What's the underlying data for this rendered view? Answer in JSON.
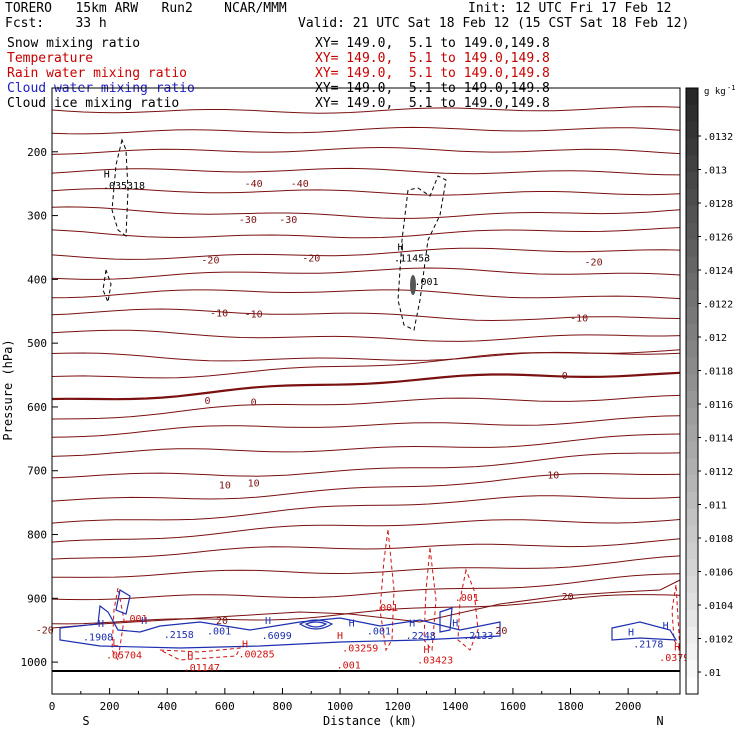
{
  "header": {
    "model": "TORERO   15km ARW   Run2    NCAR/MMM",
    "init": "Init: 12 UTC Fri 17 Feb 12",
    "fcst": "Fcst:    33 h",
    "valid": "Valid: 21 UTC Sat 18 Feb 12 (15 CST Sat 18 Feb 12)"
  },
  "fields": [
    {
      "name": "Snow mixing ratio",
      "xy": "XY= 149.0,  5.1 to 149.0,149.8",
      "color": "#000000"
    },
    {
      "name": "Temperature",
      "xy": "XY= 149.0,  5.1 to 149.0,149.8",
      "color": "#c00000"
    },
    {
      "name": "Rain water mixing ratio",
      "xy": "XY= 149.0,  5.1 to 149.0,149.8",
      "color": "#cc0000"
    },
    {
      "name": "Cloud water mixing ratio",
      "xy": "XY= 149.0,  5.1 to 149.0,149.8",
      "color": "#2020c0"
    },
    {
      "name": "Cloud ice mixing ratio",
      "xy": "XY= 149.0,  5.1 to 149.0,149.8",
      "color": "#000000"
    }
  ],
  "colorbar": {
    "unit": "g kg",
    "unit_exp": "-1",
    "labels": [
      ".0132",
      ".013",
      ".0128",
      ".0126",
      ".0124",
      ".0122",
      ".012",
      ".0118",
      ".0116",
      ".0114",
      ".0112",
      ".011",
      ".0108",
      ".0106",
      ".0104",
      ".0102",
      ".01"
    ]
  },
  "chart_data": {
    "type": "cross-section contour",
    "xlabel": "Distance (km)",
    "ylabel": "Pressure (hPa)",
    "xlim": [
      0,
      2180
    ],
    "ylim": [
      1050,
      100
    ],
    "x_ticks": [
      "0",
      "200",
      "400",
      "600",
      "800",
      "1000",
      "1200",
      "1400",
      "1600",
      "1800",
      "2000"
    ],
    "y_ticks": [
      "200",
      "300",
      "400",
      "500",
      "600",
      "700",
      "800",
      "900",
      "1000"
    ],
    "left_end_label": "S",
    "right_end_label": "N",
    "temperature_contour_labels": [
      {
        "text": "-40",
        "x": 700,
        "p": 255
      },
      {
        "text": "-40",
        "x": 860,
        "p": 255
      },
      {
        "text": "-30",
        "x": 680,
        "p": 312
      },
      {
        "text": "-30",
        "x": 820,
        "p": 312
      },
      {
        "text": "-20",
        "x": 550,
        "p": 375
      },
      {
        "text": "-20",
        "x": 900,
        "p": 372
      },
      {
        "text": "-20",
        "x": 1880,
        "p": 378
      },
      {
        "text": "-10",
        "x": 580,
        "p": 458
      },
      {
        "text": "-10",
        "x": 700,
        "p": 460
      },
      {
        "text": "-10",
        "x": 1830,
        "p": 466
      },
      {
        "text": "0",
        "x": 540,
        "p": 595
      },
      {
        "text": "0",
        "x": 700,
        "p": 598
      },
      {
        "text": "0",
        "x": 1780,
        "p": 556
      },
      {
        "text": "10",
        "x": 600,
        "p": 728
      },
      {
        "text": "10",
        "x": 700,
        "p": 725
      },
      {
        "text": "10",
        "x": 1740,
        "p": 712
      },
      {
        "text": "20",
        "x": 590,
        "p": 940
      },
      {
        "text": "20",
        "x": 1790,
        "p": 903
      },
      {
        "text": "-20",
        "x": -25,
        "p": 955
      },
      {
        "text": "20",
        "x": 1560,
        "p": 956
      }
    ],
    "cloud_ice_annotations": [
      {
        "text": "H",
        "x": 190,
        "p": 240
      },
      {
        "text": ".035318",
        "x": 250,
        "p": 258
      },
      {
        "text": "H",
        "x": 1210,
        "p": 355
      },
      {
        "text": ".11453",
        "x": 1250,
        "p": 372
      },
      {
        "text": ".001",
        "x": 1300,
        "p": 409
      }
    ],
    "cloud_water_annotations": [
      {
        "text": "H",
        "x": 170,
        "p": 945
      },
      {
        "text": ".1908",
        "x": 160,
        "p": 966
      },
      {
        "text": "H",
        "x": 320,
        "p": 940
      },
      {
        "text": ".2158",
        "x": 440,
        "p": 962
      },
      {
        "text": ".001",
        "x": 580,
        "p": 957
      },
      {
        "text": "H",
        "x": 750,
        "p": 940
      },
      {
        "text": ".6099",
        "x": 780,
        "p": 964
      },
      {
        "text": "H",
        "x": 1040,
        "p": 944
      },
      {
        "text": ".001",
        "x": 1135,
        "p": 957
      },
      {
        "text": "H",
        "x": 1250,
        "p": 944
      },
      {
        "text": ".2248",
        "x": 1280,
        "p": 964
      },
      {
        "text": "H",
        "x": 1400,
        "p": 944
      },
      {
        "text": ".2133",
        "x": 1480,
        "p": 964
      },
      {
        "text": "H",
        "x": 2010,
        "p": 958
      },
      {
        "text": ".2178",
        "x": 2070,
        "p": 977
      },
      {
        "text": "H",
        "x": 2130,
        "p": 948
      }
    ],
    "rain_water_annotations": [
      {
        "text": ".001",
        "x": 290,
        "p": 937
      },
      {
        "text": "L",
        "x": 220,
        "p": 975
      },
      {
        "text": ".05704",
        "x": 250,
        "p": 994
      },
      {
        "text": "H",
        "x": 480,
        "p": 995
      },
      {
        "text": ".01147",
        "x": 520,
        "p": 1014
      },
      {
        "text": "H",
        "x": 670,
        "p": 977
      },
      {
        "text": ".00285",
        "x": 710,
        "p": 993
      },
      {
        "text": "H",
        "x": 1000,
        "p": 964
      },
      {
        "text": ".03259",
        "x": 1070,
        "p": 983
      },
      {
        "text": ".001",
        "x": 1160,
        "p": 920
      },
      {
        "text": ".001",
        "x": 1030,
        "p": 1010
      },
      {
        "text": "H",
        "x": 1300,
        "p": 986
      },
      {
        "text": ".03423",
        "x": 1330,
        "p": 1002
      },
      {
        "text": ".001",
        "x": 1440,
        "p": 904
      },
      {
        "text": "H",
        "x": 2170,
        "p": 982
      },
      {
        "text": ".0379",
        "x": 2160,
        "p": 998
      }
    ]
  }
}
